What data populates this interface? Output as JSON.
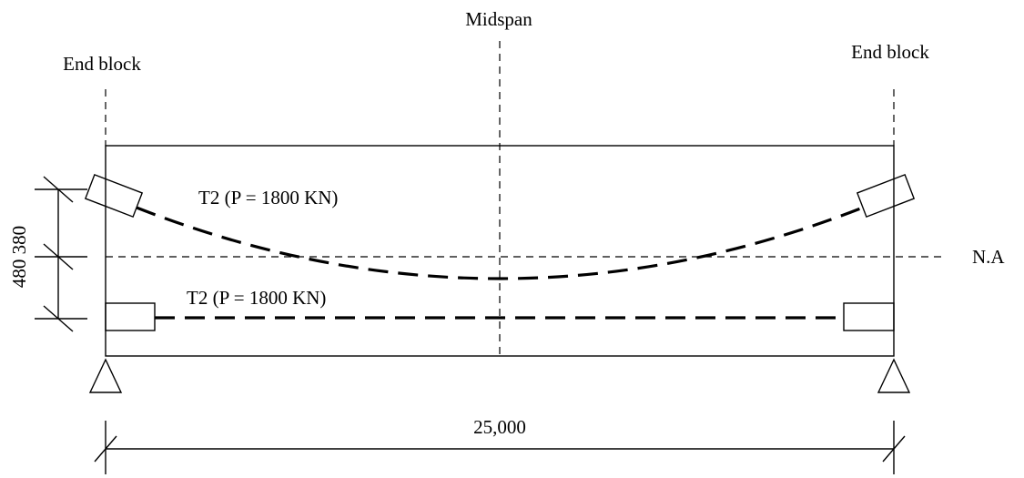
{
  "labels": {
    "midspan": "Midspan",
    "end_block_left": "End block",
    "end_block_right": "End block",
    "tendon_upper": "T2 (P = 1800 KN)",
    "tendon_lower": "T2 (P = 1800 KN)",
    "neutral_axis": "N.A",
    "dim_vertical": "480 380",
    "span_length": "25,000"
  }
}
